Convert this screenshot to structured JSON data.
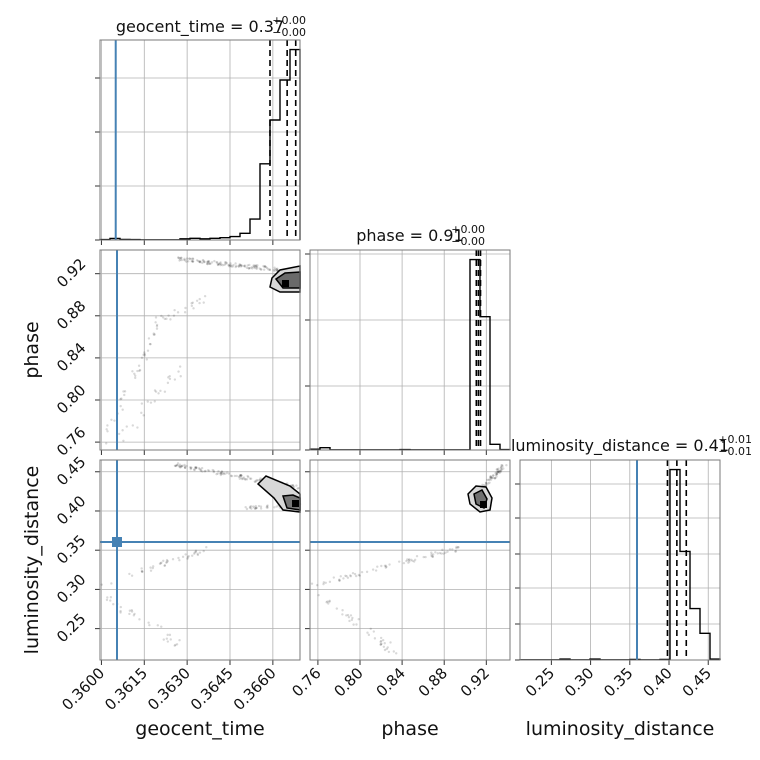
{
  "chart_data": {
    "type": "scatter",
    "titles": {
      "geocent_time": {
        "main": "geocent_time = 0.37",
        "plus": "+0.00",
        "minus": "−0.00"
      },
      "phase": {
        "main": "phase = 0.91",
        "plus": "+0.00",
        "minus": "−0.00"
      },
      "luminosity_distance": {
        "main": "luminosity_distance = 0.41",
        "plus": "+0.01",
        "minus": "−0.01"
      }
    },
    "axis_labels": {
      "x0": "geocent_time",
      "x1": "phase",
      "x2": "luminosity_distance",
      "y1": "phase",
      "y2": "luminosity_distance"
    },
    "ticks": {
      "geocent_time": [
        "0.3600",
        "0.3615",
        "0.3630",
        "0.3645",
        "0.3660"
      ],
      "phase_x": [
        "0.76",
        "0.80",
        "0.84",
        "0.88",
        "0.92"
      ],
      "phase_y": [
        "0.76",
        "0.80",
        "0.84",
        "0.88",
        "0.92"
      ],
      "lumdist_x": [
        "0.25",
        "0.30",
        "0.35",
        "0.40",
        "0.45"
      ],
      "lumdist_y": [
        "0.25",
        "0.30",
        "0.35",
        "0.40",
        "0.45"
      ]
    },
    "ranges": {
      "geocent_time": [
        0.35995,
        0.36695
      ],
      "phase": [
        0.7525,
        0.9425
      ],
      "luminosity_distance": [
        0.21,
        0.465
      ]
    },
    "truth": {
      "geocent_time": 0.3605,
      "luminosity_distance": 0.36
    },
    "quantiles": {
      "geocent_time": [
        0.3659,
        0.3665,
        0.3668
      ],
      "phase": [
        0.9105,
        0.9125,
        0.9145
      ],
      "luminosity_distance": [
        0.398,
        0.41,
        0.422
      ]
    },
    "hist_geocent_time": {
      "edges": [
        0.35995,
        0.3603,
        0.36065,
        0.361,
        0.36135,
        0.3617,
        0.36205,
        0.3624,
        0.36275,
        0.3631,
        0.36345,
        0.3638,
        0.36415,
        0.3645,
        0.36485,
        0.3652,
        0.36555,
        0.3659,
        0.36625,
        0.3666,
        0.36695
      ],
      "counts": [
        0.2,
        0.8,
        0.3,
        0.2,
        0.1,
        0.1,
        0.1,
        0.1,
        0.6,
        0.9,
        0.6,
        0.9,
        1.2,
        1.8,
        3.5,
        11,
        40,
        63,
        84,
        100
      ],
      "ymax": 105
    },
    "hist_phase": {
      "edges": [
        0.7525,
        0.762,
        0.7715,
        0.781,
        0.7905,
        0.8,
        0.8095,
        0.819,
        0.8285,
        0.838,
        0.8475,
        0.857,
        0.8665,
        0.876,
        0.8855,
        0.895,
        0.9045,
        0.914,
        0.9235,
        0.933,
        0.9425
      ],
      "counts": [
        0.4,
        1.2,
        0.1,
        0.1,
        0.1,
        0.1,
        0.1,
        0.1,
        0.1,
        0.2,
        0.1,
        0.1,
        0.1,
        0.1,
        0.1,
        0.1,
        100,
        70,
        3,
        0.2
      ],
      "ymax": 105
    },
    "hist_luminosity_distance": {
      "edges": [
        0.21,
        0.22275,
        0.2355,
        0.24825,
        0.261,
        0.27375,
        0.2865,
        0.29925,
        0.312,
        0.32475,
        0.3375,
        0.35025,
        0.363,
        0.37575,
        0.3885,
        0.40125,
        0.414,
        0.42675,
        0.4395,
        0.45225,
        0.465
      ],
      "counts": [
        0.1,
        0.1,
        0.1,
        0.1,
        0.5,
        0.1,
        0.1,
        0.5,
        0.1,
        0.1,
        0.1,
        0.3,
        0.1,
        0.1,
        0.3,
        100,
        57,
        27,
        14,
        0.5
      ],
      "ymax": 105
    }
  }
}
